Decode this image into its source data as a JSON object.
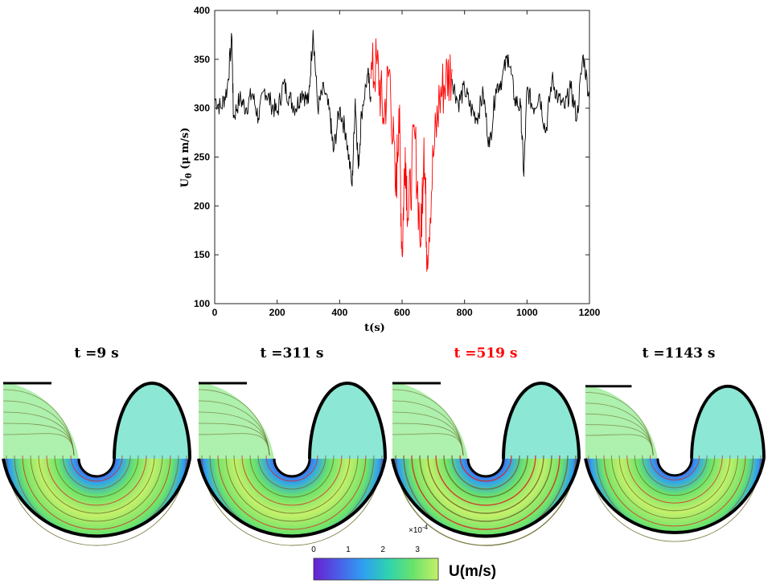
{
  "chart_data": [
    {
      "type": "line",
      "title": "",
      "xlabel": "t(s)",
      "ylabel": "U_θ (μ m/s)",
      "ylabel_parts": {
        "main": "U",
        "sub": "θ",
        "unit": " (μ m/s)"
      },
      "xlim": [
        0,
        1200
      ],
      "ylim": [
        100,
        400
      ],
      "xticks": [
        0,
        200,
        400,
        600,
        800,
        1000,
        1200
      ],
      "yticks": [
        100,
        150,
        200,
        250,
        300,
        350,
        400
      ],
      "grid": false,
      "series": [
        {
          "color": "#000000",
          "x": [
            0,
            20,
            40,
            55,
            60,
            80,
            100,
            120,
            140,
            160,
            180,
            200,
            220,
            240,
            260,
            280,
            300,
            315,
            330,
            350,
            370,
            380,
            400,
            420,
            440,
            450,
            460,
            470,
            490,
            500
          ],
          "y": [
            310,
            300,
            320,
            372,
            290,
            310,
            300,
            315,
            290,
            320,
            305,
            295,
            325,
            310,
            300,
            318,
            305,
            380,
            300,
            320,
            290,
            255,
            300,
            275,
            220,
            310,
            238,
            295,
            335,
            312
          ]
        },
        {
          "color": "#ff0000",
          "x": [
            500,
            520,
            540,
            560,
            580,
            590,
            600,
            610,
            620,
            640,
            660,
            670,
            680,
            700,
            720,
            740,
            760
          ],
          "y": [
            330,
            345,
            290,
            340,
            210,
            300,
            150,
            260,
            185,
            275,
            160,
            270,
            150,
            250,
            310,
            330,
            340
          ]
        },
        {
          "color": "#000000",
          "x": [
            760,
            780,
            800,
            820,
            840,
            860,
            880,
            900,
            920,
            940,
            960,
            980,
            990,
            1000,
            1020,
            1040,
            1060,
            1080,
            1100,
            1120,
            1140,
            1160,
            1180,
            1200
          ],
          "y": [
            330,
            305,
            320,
            300,
            290,
            315,
            260,
            320,
            330,
            355,
            310,
            300,
            230,
            320,
            300,
            315,
            275,
            330,
            310,
            300,
            320,
            290,
            355,
            310
          ]
        }
      ]
    },
    {
      "type": "heatmap",
      "panels": [
        {
          "title": "t =9 s",
          "title_color": "#000000"
        },
        {
          "title": "t =311 s",
          "title_color": "#000000"
        },
        {
          "title": "t =519 s",
          "title_color": "#ff0000"
        },
        {
          "title": "t =1143 s",
          "title_color": "#000000"
        }
      ],
      "colorbar": {
        "label": "U(m/s)",
        "ticks": [
          "0",
          "1",
          "2",
          "3"
        ],
        "tick_values": [
          0,
          1,
          2,
          3
        ],
        "range": [
          0,
          3.6
        ],
        "multiplier_base": "×10",
        "multiplier_exp": "-4",
        "colors": [
          "#6a1fd1",
          "#4a5ee8",
          "#2fa0f0",
          "#2ed3b0",
          "#6be36a",
          "#c4f06a"
        ]
      }
    }
  ]
}
